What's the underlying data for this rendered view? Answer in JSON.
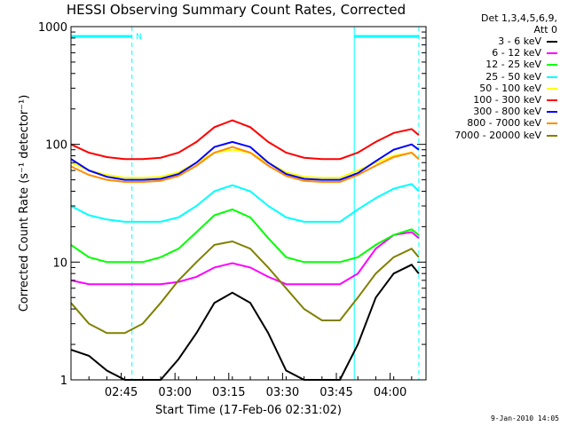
{
  "chart_data": {
    "type": "line",
    "title": "HESSI Observing Summary Count Rates, Corrected",
    "xlabel": "Start Time (17-Feb-06 02:31:02)",
    "ylabel": "Corrected Count Rate (s⁻¹ detector⁻¹)",
    "yscale": "log",
    "ylim": [
      1,
      1000
    ],
    "xlim_minutes": [
      0,
      99
    ],
    "x_ticks": [
      {
        "label": "02:45",
        "minute": 14
      },
      {
        "label": "03:00",
        "minute": 29
      },
      {
        "label": "03:15",
        "minute": 44
      },
      {
        "label": "03:30",
        "minute": 59
      },
      {
        "label": "03:45",
        "minute": 74
      },
      {
        "label": "04:00",
        "minute": 89
      }
    ],
    "y_ticks": [
      {
        "label": "1",
        "value": 1
      },
      {
        "label": "10",
        "value": 10
      },
      {
        "label": "100",
        "value": 100
      },
      {
        "label": "1000",
        "value": 1000
      }
    ],
    "legend_header": [
      "Det 1,3,4,5,6,9,",
      "Att 0"
    ],
    "annotation_n": "N",
    "night_bars": [
      [
        0,
        17
      ],
      [
        79,
        97
      ]
    ],
    "dashed_markers_minutes": [
      17,
      97
    ],
    "solid_markers_minutes": [
      0,
      79
    ],
    "x_minutes": [
      0,
      5,
      10,
      15,
      20,
      25,
      30,
      35,
      40,
      45,
      50,
      55,
      60,
      65,
      70,
      75,
      80,
      85,
      90,
      95,
      97
    ],
    "series": [
      {
        "name": "3 - 6 keV",
        "color": "#000000",
        "values": [
          1.8,
          1.6,
          1.2,
          1,
          1,
          1,
          1.5,
          2.5,
          4.5,
          5.5,
          4.5,
          2.5,
          1.2,
          1,
          1,
          1,
          2,
          5,
          8,
          9.5,
          8
        ]
      },
      {
        "name": "6 - 12 keV",
        "color": "#ff00ff",
        "values": [
          7,
          6.5,
          6.5,
          6.5,
          6.5,
          6.5,
          6.8,
          7.5,
          9,
          9.8,
          9,
          7.5,
          6.5,
          6.5,
          6.5,
          6.5,
          8,
          13,
          17,
          18,
          16
        ]
      },
      {
        "name": "12 - 25 keV",
        "color": "#00ff00",
        "values": [
          14,
          11,
          10,
          10,
          10,
          11,
          13,
          18,
          25,
          28,
          24,
          16,
          11,
          10,
          10,
          10,
          11,
          14,
          17,
          19,
          17
        ]
      },
      {
        "name": "25 - 50 keV",
        "color": "#00ffff",
        "values": [
          30,
          25,
          23,
          22,
          22,
          22,
          24,
          30,
          40,
          45,
          40,
          30,
          24,
          22,
          22,
          22,
          28,
          35,
          42,
          46,
          40
        ]
      },
      {
        "name": "50 - 100 keV",
        "color": "#ffff00",
        "values": [
          70,
          60,
          55,
          52,
          52,
          53,
          58,
          70,
          85,
          90,
          85,
          70,
          58,
          53,
          52,
          52,
          60,
          70,
          80,
          85,
          75
        ]
      },
      {
        "name": "100 - 300 keV",
        "color": "#ff0000",
        "values": [
          100,
          85,
          78,
          75,
          75,
          77,
          85,
          105,
          140,
          160,
          140,
          105,
          85,
          77,
          75,
          75,
          85,
          105,
          125,
          135,
          120
        ]
      },
      {
        "name": "300 - 800 keV",
        "color": "#0000ff",
        "values": [
          75,
          60,
          53,
          50,
          50,
          51,
          56,
          70,
          95,
          105,
          95,
          70,
          56,
          51,
          50,
          50,
          57,
          72,
          90,
          100,
          90
        ]
      },
      {
        "name": "800 - 7000 keV",
        "color": "#ff8c00",
        "values": [
          65,
          55,
          50,
          48,
          48,
          49,
          54,
          66,
          85,
          95,
          85,
          66,
          54,
          49,
          48,
          48,
          55,
          66,
          78,
          85,
          75
        ]
      },
      {
        "name": "7000 - 20000 keV",
        "color": "#808000",
        "values": [
          4.5,
          3,
          2.5,
          2.5,
          3,
          4.5,
          7,
          10,
          14,
          15,
          13,
          9,
          6,
          4,
          3.2,
          3.2,
          5,
          8,
          11,
          13,
          11
        ]
      }
    ]
  },
  "footer": {
    "date_stamp": "9-Jan-2010 14:05"
  }
}
